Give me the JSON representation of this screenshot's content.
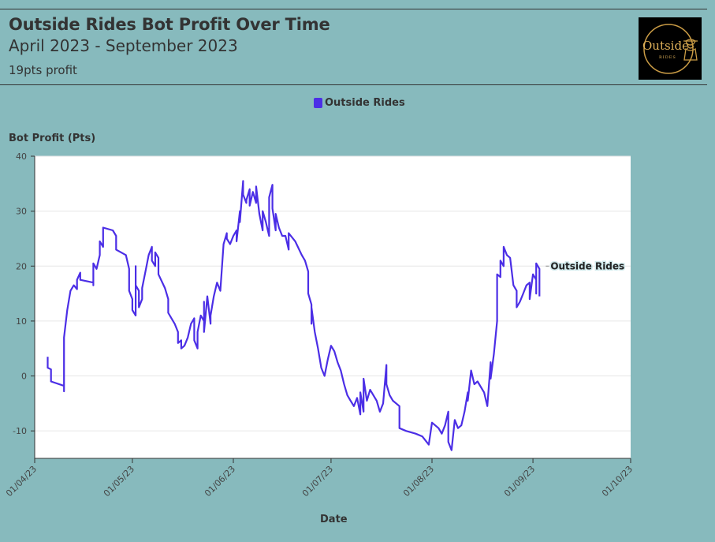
{
  "header": {
    "title": "Outside Rides Bot Profit Over Time",
    "subtitle": "April 2023 - September 2023",
    "note": "19pts profit",
    "logo_text": "Outside",
    "logo_subtext": "RIDES"
  },
  "colors": {
    "background": "#87babd",
    "plot_background": "#ffffff",
    "series": "#4b2ee6",
    "text": "#333333"
  },
  "chart_data": {
    "type": "line",
    "title": "Outside Rides Bot Profit Over Time",
    "subtitle": "April 2023 - September 2023",
    "xlabel": "Date",
    "ylabel": "Bot Profit (Pts)",
    "ylim": [
      -15,
      40
    ],
    "yticks": [
      -10,
      0,
      10,
      20,
      30,
      40
    ],
    "xlim": [
      "2023-04-01",
      "2023-10-01"
    ],
    "xticks": [
      "01/04/23",
      "01/05/23",
      "01/06/23",
      "01/07/23",
      "01/08/23",
      "01/09/23",
      "01/10/23"
    ],
    "grid": "horizontal",
    "legend": "top-center",
    "series": [
      {
        "name": "Outside Rides",
        "color": "#4b2ee6",
        "end_label": "Outside Rides",
        "points": [
          [
            "2023-04-05",
            3.5
          ],
          [
            "2023-04-05",
            1.5
          ],
          [
            "2023-04-06",
            1.2
          ],
          [
            "2023-04-06",
            -1.0
          ],
          [
            "2023-04-10",
            -1.8
          ],
          [
            "2023-04-10",
            -2.8
          ],
          [
            "2023-04-10",
            7.0
          ],
          [
            "2023-04-11",
            12.0
          ],
          [
            "2023-04-12",
            15.5
          ],
          [
            "2023-04-13",
            16.5
          ],
          [
            "2023-04-14",
            15.8
          ],
          [
            "2023-04-14",
            17.5
          ],
          [
            "2023-04-15",
            18.8
          ],
          [
            "2023-04-15",
            17.5
          ],
          [
            "2023-04-19",
            17.0
          ],
          [
            "2023-04-19",
            16.5
          ],
          [
            "2023-04-19",
            20.5
          ],
          [
            "2023-04-20",
            19.5
          ],
          [
            "2023-04-21",
            22.0
          ],
          [
            "2023-04-21",
            24.5
          ],
          [
            "2023-04-22",
            23.5
          ],
          [
            "2023-04-22",
            27.0
          ],
          [
            "2023-04-25",
            26.5
          ],
          [
            "2023-04-26",
            25.5
          ],
          [
            "2023-04-26",
            23.0
          ],
          [
            "2023-04-29",
            22.0
          ],
          [
            "2023-04-30",
            19.5
          ],
          [
            "2023-04-30",
            15.5
          ],
          [
            "2023-05-01",
            14.0
          ],
          [
            "2023-05-01",
            12.0
          ],
          [
            "2023-05-02",
            11.0
          ],
          [
            "2023-05-02",
            20.0
          ],
          [
            "2023-05-02",
            16.5
          ],
          [
            "2023-05-03",
            15.5
          ],
          [
            "2023-05-03",
            12.5
          ],
          [
            "2023-05-04",
            14.0
          ],
          [
            "2023-05-04",
            16.0
          ],
          [
            "2023-05-05",
            19.0
          ],
          [
            "2023-05-06",
            22.0
          ],
          [
            "2023-05-07",
            23.5
          ],
          [
            "2023-05-07",
            21.0
          ],
          [
            "2023-05-08",
            20.0
          ],
          [
            "2023-05-08",
            22.5
          ],
          [
            "2023-05-09",
            21.5
          ],
          [
            "2023-05-09",
            18.5
          ],
          [
            "2023-05-11",
            16.0
          ],
          [
            "2023-05-12",
            14.0
          ],
          [
            "2023-05-12",
            11.5
          ],
          [
            "2023-05-14",
            9.5
          ],
          [
            "2023-05-15",
            8.0
          ],
          [
            "2023-05-15",
            6.0
          ],
          [
            "2023-05-16",
            6.5
          ],
          [
            "2023-05-16",
            5.0
          ],
          [
            "2023-05-17",
            5.5
          ],
          [
            "2023-05-18",
            7.0
          ],
          [
            "2023-05-19",
            9.5
          ],
          [
            "2023-05-20",
            10.5
          ],
          [
            "2023-05-20",
            6.5
          ],
          [
            "2023-05-21",
            5.0
          ],
          [
            "2023-05-21",
            8.0
          ],
          [
            "2023-05-22",
            11.0
          ],
          [
            "2023-05-23",
            10.0
          ],
          [
            "2023-05-23",
            13.5
          ],
          [
            "2023-05-23",
            8.0
          ],
          [
            "2023-05-24",
            14.5
          ],
          [
            "2023-05-25",
            9.5
          ],
          [
            "2023-05-25",
            11.0
          ],
          [
            "2023-05-26",
            14.5
          ],
          [
            "2023-05-27",
            17.0
          ],
          [
            "2023-05-28",
            15.5
          ],
          [
            "2023-05-29",
            24.0
          ],
          [
            "2023-05-30",
            26.0
          ],
          [
            "2023-05-30",
            25.0
          ],
          [
            "2023-05-31",
            24.0
          ],
          [
            "2023-06-01",
            25.5
          ],
          [
            "2023-06-02",
            26.5
          ],
          [
            "2023-06-02",
            24.5
          ],
          [
            "2023-06-03",
            30.0
          ],
          [
            "2023-06-03",
            28.0
          ],
          [
            "2023-06-04",
            35.5
          ],
          [
            "2023-06-04",
            33.0
          ],
          [
            "2023-06-05",
            31.5
          ],
          [
            "2023-06-05",
            32.0
          ],
          [
            "2023-06-06",
            34.0
          ],
          [
            "2023-06-06",
            31.0
          ],
          [
            "2023-06-07",
            33.5
          ],
          [
            "2023-06-08",
            31.5
          ],
          [
            "2023-06-08",
            34.5
          ],
          [
            "2023-06-09",
            29.5
          ],
          [
            "2023-06-10",
            26.5
          ],
          [
            "2023-06-10",
            30.0
          ],
          [
            "2023-06-11",
            28.0
          ],
          [
            "2023-06-12",
            25.5
          ],
          [
            "2023-06-12",
            32.5
          ],
          [
            "2023-06-13",
            34.8
          ],
          [
            "2023-06-13",
            30.5
          ],
          [
            "2023-06-14",
            26.5
          ],
          [
            "2023-06-14",
            29.5
          ],
          [
            "2023-06-15",
            27.0
          ],
          [
            "2023-06-16",
            25.5
          ],
          [
            "2023-06-17",
            25.5
          ],
          [
            "2023-06-18",
            23.0
          ],
          [
            "2023-06-18",
            26.0
          ],
          [
            "2023-06-20",
            24.5
          ],
          [
            "2023-06-22",
            22.0
          ],
          [
            "2023-06-23",
            21.0
          ],
          [
            "2023-06-24",
            19.0
          ],
          [
            "2023-06-24",
            15.0
          ],
          [
            "2023-06-25",
            13.0
          ],
          [
            "2023-06-25",
            9.5
          ],
          [
            "2023-06-25",
            12.5
          ],
          [
            "2023-06-26",
            8.0
          ],
          [
            "2023-06-27",
            5.0
          ],
          [
            "2023-06-28",
            1.5
          ],
          [
            "2023-06-29",
            0.0
          ],
          [
            "2023-06-30",
            3.0
          ],
          [
            "2023-07-01",
            5.5
          ],
          [
            "2023-07-02",
            4.5
          ],
          [
            "2023-07-03",
            2.5
          ],
          [
            "2023-07-04",
            1.0
          ],
          [
            "2023-07-05",
            -1.5
          ],
          [
            "2023-07-06",
            -3.5
          ],
          [
            "2023-07-07",
            -4.5
          ],
          [
            "2023-07-08",
            -5.5
          ],
          [
            "2023-07-09",
            -4.0
          ],
          [
            "2023-07-10",
            -7.0
          ],
          [
            "2023-07-10",
            -3.0
          ],
          [
            "2023-07-11",
            -6.5
          ],
          [
            "2023-07-11",
            -0.5
          ],
          [
            "2023-07-12",
            -4.5
          ],
          [
            "2023-07-13",
            -2.5
          ],
          [
            "2023-07-14",
            -3.5
          ],
          [
            "2023-07-15",
            -4.5
          ],
          [
            "2023-07-16",
            -6.5
          ],
          [
            "2023-07-17",
            -5.0
          ],
          [
            "2023-07-18",
            2.0
          ],
          [
            "2023-07-18",
            -1.5
          ],
          [
            "2023-07-19",
            -3.5
          ],
          [
            "2023-07-20",
            -4.5
          ],
          [
            "2023-07-22",
            -5.5
          ],
          [
            "2023-07-22",
            -9.5
          ],
          [
            "2023-07-24",
            -10.0
          ],
          [
            "2023-07-27",
            -10.5
          ],
          [
            "2023-07-29",
            -11.0
          ],
          [
            "2023-07-31",
            -12.5
          ],
          [
            "2023-08-01",
            -8.5
          ],
          [
            "2023-08-03",
            -9.5
          ],
          [
            "2023-08-04",
            -10.5
          ],
          [
            "2023-08-05",
            -9.0
          ],
          [
            "2023-08-06",
            -6.5
          ],
          [
            "2023-08-06",
            -12.0
          ],
          [
            "2023-08-07",
            -13.5
          ],
          [
            "2023-08-08",
            -8.0
          ],
          [
            "2023-08-09",
            -9.5
          ],
          [
            "2023-08-10",
            -9.0
          ],
          [
            "2023-08-11",
            -6.5
          ],
          [
            "2023-08-12",
            -3.0
          ],
          [
            "2023-08-12",
            -4.5
          ],
          [
            "2023-08-13",
            1.0
          ],
          [
            "2023-08-14",
            -1.5
          ],
          [
            "2023-08-15",
            -1.0
          ],
          [
            "2023-08-17",
            -3.0
          ],
          [
            "2023-08-18",
            -5.5
          ],
          [
            "2023-08-19",
            2.5
          ],
          [
            "2023-08-19",
            -0.5
          ],
          [
            "2023-08-20",
            4.0
          ],
          [
            "2023-08-21",
            10.0
          ],
          [
            "2023-08-21",
            18.5
          ],
          [
            "2023-08-22",
            18.0
          ],
          [
            "2023-08-22",
            21.0
          ],
          [
            "2023-08-23",
            20.0
          ],
          [
            "2023-08-23",
            23.5
          ],
          [
            "2023-08-24",
            22.0
          ],
          [
            "2023-08-25",
            21.5
          ],
          [
            "2023-08-26",
            16.5
          ],
          [
            "2023-08-27",
            15.5
          ],
          [
            "2023-08-27",
            12.5
          ],
          [
            "2023-08-28",
            13.5
          ],
          [
            "2023-08-29",
            15.0
          ],
          [
            "2023-08-30",
            16.5
          ],
          [
            "2023-08-31",
            17.0
          ],
          [
            "2023-08-31",
            14.0
          ],
          [
            "2023-09-01",
            18.5
          ],
          [
            "2023-09-02",
            17.5
          ],
          [
            "2023-09-02",
            15.0
          ],
          [
            "2023-09-02",
            20.5
          ],
          [
            "2023-09-03",
            19.5
          ],
          [
            "2023-09-03",
            14.5
          ]
        ]
      }
    ]
  }
}
